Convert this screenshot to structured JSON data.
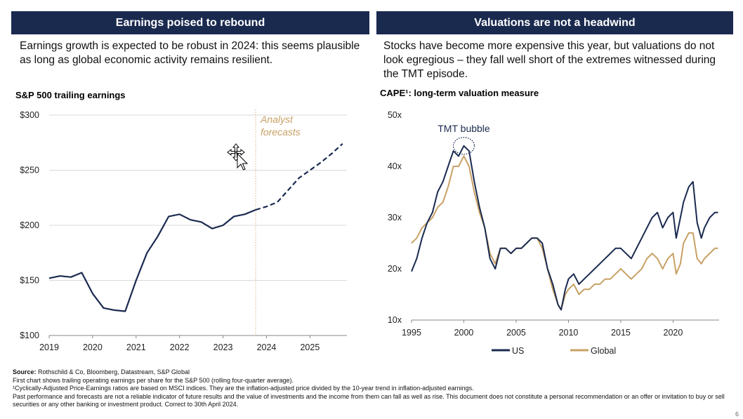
{
  "left_panel": {
    "banner": "Earnings poised to rebound",
    "intro": "Earnings growth is expected to be robust in 2024: this seems plausible as long as global economic activity remains resilient."
  },
  "right_panel": {
    "banner": "Valuations are not a headwind",
    "intro": "Stocks have become more expensive this year, but valuations do not look egregious – they fall well short of the extremes witnessed during the TMT episode."
  },
  "chart_data": [
    {
      "type": "line",
      "title": "S&P 500 trailing earnings",
      "xlabel": "",
      "ylabel": "",
      "xlim": [
        2019,
        2025.85
      ],
      "ylim": [
        100,
        300
      ],
      "x_ticks": [
        "2019",
        "2020",
        "2021",
        "2022",
        "2023",
        "2024",
        "2025"
      ],
      "y_ticks": [
        "$300",
        "$250",
        "$200",
        "$150",
        "$100"
      ],
      "y_tick_values": [
        300,
        250,
        200,
        150,
        100
      ],
      "grid": "horizontal",
      "annotation": {
        "text_lines": [
          "Analyst",
          "forecasts"
        ],
        "x": 2023.75,
        "color": "#c8a165"
      },
      "series": [
        {
          "style": "solid",
          "color": "#1a2a4f",
          "x": [
            2019.0,
            2019.25,
            2019.5,
            2019.75,
            2020.0,
            2020.25,
            2020.5,
            2020.75,
            2021.0,
            2021.25,
            2021.5,
            2021.75,
            2022.0,
            2022.25,
            2022.5,
            2022.75,
            2023.0,
            2023.25,
            2023.5,
            2023.75
          ],
          "values": [
            152,
            154,
            153,
            157,
            138,
            125,
            123,
            122,
            150,
            175,
            190,
            208,
            210,
            205,
            203,
            197,
            200,
            208,
            210,
            214
          ]
        },
        {
          "style": "dashed",
          "color": "#1a2a4f",
          "x": [
            2023.75,
            2024.0,
            2024.25,
            2024.5,
            2024.75,
            2025.0,
            2025.25,
            2025.5,
            2025.75
          ],
          "values": [
            214,
            217,
            221,
            232,
            243,
            250,
            257,
            265,
            274
          ]
        }
      ]
    },
    {
      "type": "line",
      "title": "CAPE¹: long-term valuation measure",
      "xlabel": "",
      "ylabel": "",
      "xlim": [
        1995,
        2024.4
      ],
      "ylim": [
        10,
        50
      ],
      "x_ticks": [
        "1995",
        "2000",
        "2005",
        "2010",
        "2015",
        "2020"
      ],
      "y_ticks": [
        "50x",
        "40x",
        "30x",
        "20x",
        "10x"
      ],
      "y_tick_values": [
        50,
        40,
        30,
        20,
        10
      ],
      "grid": "none",
      "legend": "bottom",
      "annotation": {
        "text": "TMT bubble",
        "x": 2000,
        "y": 44
      },
      "series": [
        {
          "name": "US",
          "color": "#1a2a4f",
          "x": [
            1995,
            1995.5,
            1996,
            1996.5,
            1997,
            1997.5,
            1998,
            1998.5,
            1999,
            1999.5,
            2000,
            2000.5,
            2001,
            2001.5,
            2002,
            2002.5,
            2003,
            2003.5,
            2004,
            2004.5,
            2005,
            2005.5,
            2006,
            2006.5,
            2007,
            2007.5,
            2008,
            2008.5,
            2009,
            2009.3,
            2009.7,
            2010,
            2010.5,
            2011,
            2011.5,
            2012,
            2012.5,
            2013,
            2013.5,
            2014,
            2014.5,
            2015,
            2015.5,
            2016,
            2016.5,
            2017,
            2017.5,
            2018,
            2018.5,
            2019,
            2019.5,
            2020,
            2020.3,
            2020.7,
            2021,
            2021.5,
            2021.9,
            2022.3,
            2022.7,
            2023,
            2023.5,
            2024,
            2024.3
          ],
          "values": [
            19.5,
            22,
            26,
            29,
            31,
            35,
            37,
            40,
            43,
            42,
            44,
            43,
            37,
            32,
            28,
            22,
            20,
            24,
            24,
            23,
            24,
            24,
            25,
            26,
            26,
            25,
            20,
            17,
            13,
            12,
            16,
            18,
            19,
            17,
            18,
            19,
            20,
            21,
            22,
            23,
            24,
            24,
            23,
            22,
            24,
            26,
            28,
            30,
            31,
            28,
            30,
            31,
            26,
            30,
            33,
            36,
            37,
            29,
            26,
            28,
            30,
            31,
            31
          ]
        },
        {
          "name": "Global",
          "color": "#c8a165",
          "x": [
            1995,
            1995.5,
            1996,
            1996.5,
            1997,
            1997.5,
            1998,
            1998.5,
            1999,
            1999.5,
            2000,
            2000.5,
            2001,
            2001.5,
            2002,
            2002.5,
            2003,
            2003.5,
            2004,
            2004.5,
            2005,
            2005.5,
            2006,
            2006.5,
            2007,
            2007.5,
            2008,
            2008.5,
            2009,
            2009.3,
            2009.7,
            2010,
            2010.5,
            2011,
            2011.5,
            2012,
            2012.5,
            2013,
            2013.5,
            2014,
            2014.5,
            2015,
            2015.5,
            2016,
            2016.5,
            2017,
            2017.5,
            2018,
            2018.5,
            2019,
            2019.5,
            2020,
            2020.3,
            2020.7,
            2021,
            2021.5,
            2021.9,
            2022.3,
            2022.7,
            2023,
            2023.5,
            2024,
            2024.3
          ],
          "values": [
            25,
            26,
            28,
            29,
            30,
            32,
            33,
            36,
            40,
            40,
            42,
            40,
            35,
            31,
            28,
            23,
            21,
            24,
            24,
            23,
            24,
            24,
            25,
            26,
            26,
            24,
            20,
            16,
            13,
            12,
            15,
            16,
            17,
            15,
            16,
            16,
            17,
            17,
            18,
            18,
            19,
            20,
            19,
            18,
            19,
            20,
            22,
            23,
            22,
            20,
            22,
            23,
            19,
            21,
            25,
            27,
            27,
            22,
            21,
            22,
            23,
            24,
            24
          ]
        }
      ]
    }
  ],
  "footer": {
    "source_label": "Source:",
    "source_text": " Rothschild & Co, Bloomberg, Datastream, S&P Global",
    "line2": "First chart shows trailing operating earnings per share for the S&P 500 (rolling four-quarter average).",
    "line3": "¹Cyclically-Adjusted Price-Earnings ratios are based on MSCI indices. They are the inflation-adjusted price divided by the 10-year trend in inflation-adjusted earnings.",
    "line4": "Past performance and forecasts are not a reliable indicator of future results and the value of investments and the income from them can fall as well as rise. This document does not constitute a personal recommendation or an offer or invitation to buy or sell securities or any other banking or investment product. Correct to 30th April 2024.",
    "page_number": "6"
  }
}
